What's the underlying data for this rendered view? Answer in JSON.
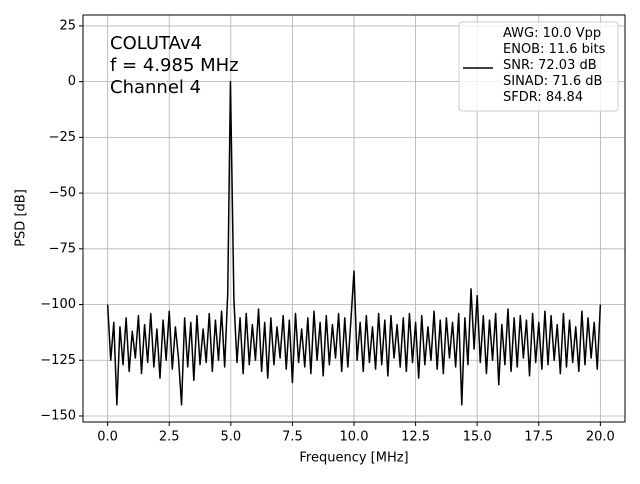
{
  "chart_data": {
    "type": "line",
    "annotations": [
      "COLUTAv4",
      "f = 4.985 MHz",
      "Channel 4"
    ],
    "xlabel": "Frequency [MHz]",
    "ylabel": "PSD [dB]",
    "x": [
      0,
      0.125,
      0.25,
      0.375,
      0.5,
      0.625,
      0.75,
      0.875,
      1,
      1.125,
      1.25,
      1.375,
      1.5,
      1.625,
      1.75,
      1.875,
      2,
      2.125,
      2.25,
      2.375,
      2.5,
      2.625,
      2.75,
      2.875,
      3,
      3.125,
      3.25,
      3.375,
      3.5,
      3.625,
      3.75,
      3.875,
      4,
      4.125,
      4.25,
      4.375,
      4.5,
      4.625,
      4.75,
      4.875,
      4.985,
      5.125,
      5.25,
      5.375,
      5.5,
      5.625,
      5.75,
      5.875,
      6,
      6.125,
      6.25,
      6.375,
      6.5,
      6.625,
      6.75,
      6.875,
      7,
      7.125,
      7.25,
      7.375,
      7.5,
      7.625,
      7.75,
      7.875,
      8,
      8.125,
      8.25,
      8.375,
      8.5,
      8.625,
      8.75,
      8.875,
      9,
      9.125,
      9.25,
      9.375,
      9.5,
      9.625,
      9.75,
      9.875,
      10,
      10.125,
      10.25,
      10.375,
      10.5,
      10.625,
      10.75,
      10.875,
      11,
      11.125,
      11.25,
      11.375,
      11.5,
      11.625,
      11.75,
      11.875,
      12,
      12.125,
      12.25,
      12.375,
      12.5,
      12.625,
      12.75,
      12.875,
      13,
      13.125,
      13.25,
      13.375,
      13.5,
      13.625,
      13.75,
      13.875,
      14,
      14.125,
      14.25,
      14.375,
      14.5,
      14.625,
      14.75,
      14.875,
      15,
      15.125,
      15.25,
      15.375,
      15.5,
      15.625,
      15.75,
      15.875,
      16,
      16.125,
      16.25,
      16.375,
      16.5,
      16.625,
      16.75,
      16.875,
      17,
      17.125,
      17.25,
      17.375,
      17.5,
      17.625,
      17.75,
      17.875,
      18,
      18.125,
      18.25,
      18.375,
      18.5,
      18.625,
      18.75,
      18.875,
      19,
      19.125,
      19.25,
      19.375,
      19.5,
      19.625,
      19.75,
      19.875,
      20
    ],
    "series": [
      {
        "name": "AWG: 10.0 Vpp\nENOB: 11.6 bits\nSNR: 72.03 dB\nSINAD: 71.6 dB\nSFDR: 84.84",
        "color": "#000000",
        "values": [
          -100,
          -125,
          -108,
          -145,
          -110,
          -127,
          -106,
          -130,
          -112,
          -124,
          -105,
          -131,
          -109,
          -126,
          -104,
          -128,
          -111,
          -133,
          -107,
          -125,
          -103,
          -129,
          -110,
          -124,
          -145,
          -106,
          -128,
          -108,
          -134,
          -105,
          -127,
          -111,
          -126,
          -104,
          -130,
          -107,
          -125,
          -103,
          -128,
          -95,
          0,
          -98,
          -126,
          -106,
          -131,
          -104,
          -127,
          -109,
          -125,
          -102,
          -130,
          -108,
          -133,
          -106,
          -127,
          -110,
          -124,
          -105,
          -129,
          -107,
          -135,
          -104,
          -126,
          -111,
          -128,
          -106,
          -131,
          -103,
          -125,
          -108,
          -132,
          -105,
          -127,
          -109,
          -124,
          -104,
          -130,
          -106,
          -128,
          -107,
          -85,
          -125,
          -108,
          -130,
          -105,
          -126,
          -110,
          -129,
          -104,
          -127,
          -107,
          -132,
          -105,
          -124,
          -109,
          -128,
          -106,
          -130,
          -104,
          -126,
          -108,
          -133,
          -105,
          -127,
          -110,
          -125,
          -103,
          -129,
          -107,
          -131,
          -106,
          -124,
          -108,
          -128,
          -104,
          -145,
          -106,
          -127,
          -93,
          -120,
          -96,
          -126,
          -105,
          -131,
          -107,
          -125,
          -104,
          -136,
          -109,
          -127,
          -102,
          -130,
          -106,
          -128,
          -105,
          -124,
          -107,
          -132,
          -104,
          -126,
          -108,
          -129,
          -103,
          -127,
          -105,
          -125,
          -109,
          -131,
          -104,
          -128,
          -107,
          -126,
          -110,
          -130,
          -103,
          -127,
          -106,
          -124,
          -108,
          -129,
          -100
        ]
      }
    ],
    "xlim": [
      -1.0,
      21.0
    ],
    "ylim": [
      -152.7,
      29.9
    ],
    "xticks": [
      {
        "value": 0,
        "label": "0.0"
      },
      2.5,
      {
        "value": 5,
        "label": "5.0"
      },
      7.5,
      {
        "value": 10,
        "label": "10.0"
      },
      12.5,
      {
        "value": 15,
        "label": "15.0"
      },
      17.5,
      {
        "value": 20,
        "label": "20.0"
      }
    ],
    "yticks": [
      25,
      0,
      {
        "value": -25,
        "label": "−25"
      },
      {
        "value": -50,
        "label": "−50"
      },
      {
        "value": -75,
        "label": "−75"
      },
      {
        "value": -100,
        "label": "−100"
      },
      {
        "value": -125,
        "label": "−125"
      },
      {
        "value": -150,
        "label": "−150"
      }
    ],
    "grid": true,
    "legend": "upper right"
  }
}
